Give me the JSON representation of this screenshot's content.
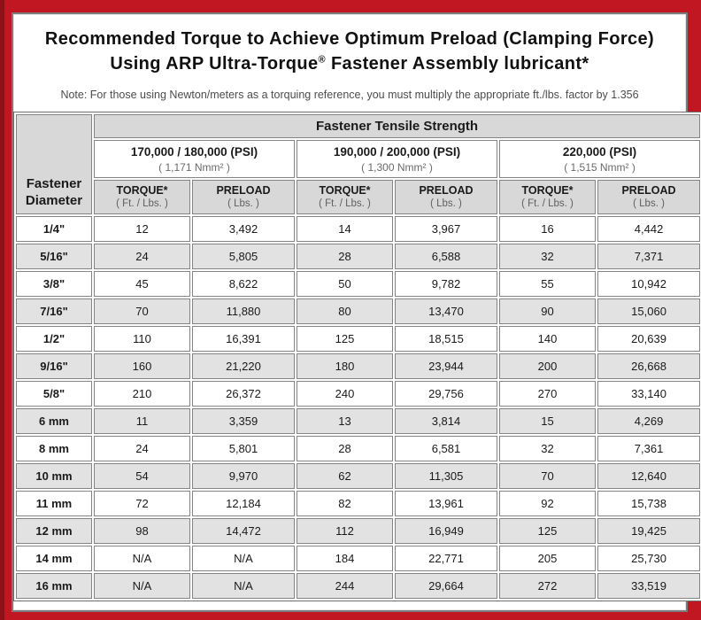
{
  "colors": {
    "frame_red": "#c01722",
    "frame_red_dark_edge": "#8e1117",
    "header_gray": "#d8d8d8",
    "row_shade_gray": "#e2e2e2",
    "cell_border": "#848484"
  },
  "header": {
    "title_line1": "Recommended Torque to Achieve Optimum Preload (Clamping Force)",
    "title_line2_pre": "Using ARP Ultra-Torque",
    "title_line2_sup": "®",
    "title_line2_post": " Fastener Assembly lubricant*",
    "note": "Note: For those using Newton/meters as a torquing reference, you must multiply the appropriate ft./lbs. factor by 1.356"
  },
  "table": {
    "corner_label_line1": "Fastener",
    "corner_label_line2": "Diameter",
    "tensile_header": "Fastener Tensile Strength",
    "strength_groups": [
      {
        "psi": "170,000 / 180,000 (PSI)",
        "nmm": "( 1,171 Nmm² )"
      },
      {
        "psi": "190,000 / 200,000 (PSI)",
        "nmm": "( 1,300 Nmm² )"
      },
      {
        "psi": "220,000 (PSI)",
        "nmm": "( 1,515 Nmm² )"
      }
    ],
    "col_headers": {
      "torque_label": "TORQUE*",
      "torque_unit": "( Ft. / Lbs. )",
      "preload_label": "PRELOAD",
      "preload_unit": "( Lbs. )"
    },
    "rows": [
      {
        "diameter": "1/4\"",
        "values": [
          "12",
          "3,492",
          "14",
          "3,967",
          "16",
          "4,442"
        ]
      },
      {
        "diameter": "5/16\"",
        "values": [
          "24",
          "5,805",
          "28",
          "6,588",
          "32",
          "7,371"
        ]
      },
      {
        "diameter": "3/8\"",
        "values": [
          "45",
          "8,622",
          "50",
          "9,782",
          "55",
          "10,942"
        ]
      },
      {
        "diameter": "7/16\"",
        "values": [
          "70",
          "11,880",
          "80",
          "13,470",
          "90",
          "15,060"
        ]
      },
      {
        "diameter": "1/2\"",
        "values": [
          "110",
          "16,391",
          "125",
          "18,515",
          "140",
          "20,639"
        ]
      },
      {
        "diameter": "9/16\"",
        "values": [
          "160",
          "21,220",
          "180",
          "23,944",
          "200",
          "26,668"
        ]
      },
      {
        "diameter": "5/8\"",
        "values": [
          "210",
          "26,372",
          "240",
          "29,756",
          "270",
          "33,140"
        ]
      },
      {
        "diameter": "6 mm",
        "values": [
          "11",
          "3,359",
          "13",
          "3,814",
          "15",
          "4,269"
        ]
      },
      {
        "diameter": "8 mm",
        "values": [
          "24",
          "5,801",
          "28",
          "6,581",
          "32",
          "7,361"
        ]
      },
      {
        "diameter": "10 mm",
        "values": [
          "54",
          "9,970",
          "62",
          "11,305",
          "70",
          "12,640"
        ]
      },
      {
        "diameter": "11 mm",
        "values": [
          "72",
          "12,184",
          "82",
          "13,961",
          "92",
          "15,738"
        ]
      },
      {
        "diameter": "12 mm",
        "values": [
          "98",
          "14,472",
          "112",
          "16,949",
          "125",
          "19,425"
        ]
      },
      {
        "diameter": "14 mm",
        "values": [
          "N/A",
          "N/A",
          "184",
          "22,771",
          "205",
          "25,730"
        ]
      },
      {
        "diameter": "16 mm",
        "values": [
          "N/A",
          "N/A",
          "244",
          "29,664",
          "272",
          "33,519"
        ]
      }
    ]
  }
}
